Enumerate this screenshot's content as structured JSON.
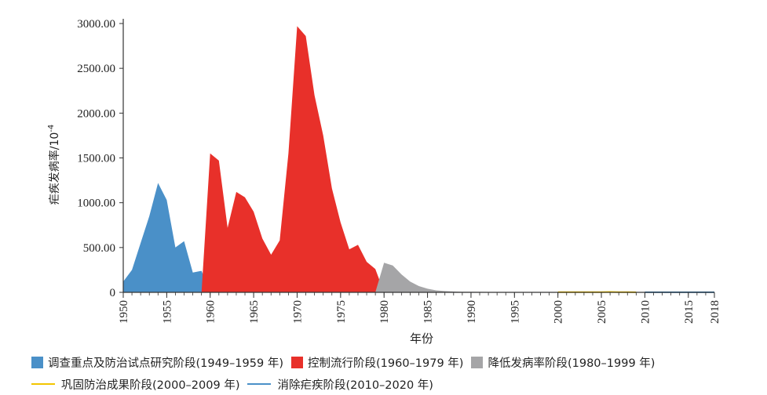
{
  "chart_data": {
    "type": "area",
    "title": "",
    "xlabel": "年份",
    "ylabel": "疟疾发病率/10",
    "ylabel_sup": "-4",
    "ylim": [
      0,
      3000
    ],
    "xlim": [
      1950,
      2018
    ],
    "y_ticks": [
      "0",
      "500.00",
      "1000.00",
      "1500.00",
      "2000.00",
      "2500.00",
      "3000.00"
    ],
    "y_tick_values": [
      0,
      500,
      1000,
      1500,
      2000,
      2500,
      3000
    ],
    "x_ticks": [
      "1950",
      "1955",
      "1960",
      "1965",
      "1970",
      "1975",
      "1980",
      "1985",
      "1990",
      "1995",
      "2000",
      "2005",
      "2010",
      "2015",
      "2018"
    ],
    "x_tick_values": [
      1950,
      1955,
      1960,
      1965,
      1970,
      1975,
      1980,
      1985,
      1990,
      1995,
      2000,
      2005,
      2010,
      2015,
      2018
    ],
    "series": [
      {
        "name": "调查重点及防治试点研究阶段(1949–1959 年)",
        "color": "#4a90c8",
        "style": "area",
        "x": [
          1950,
          1951,
          1952,
          1953,
          1954,
          1955,
          1956,
          1957,
          1958,
          1959,
          1960
        ],
        "values": [
          120,
          250,
          550,
          850,
          1220,
          1030,
          500,
          570,
          220,
          240,
          0
        ]
      },
      {
        "name": "控制流行阶段(1960–1979 年)",
        "color": "#e8302a",
        "style": "area",
        "x": [
          1959,
          1960,
          1961,
          1962,
          1963,
          1964,
          1965,
          1966,
          1967,
          1968,
          1969,
          1970,
          1971,
          1972,
          1973,
          1974,
          1975,
          1976,
          1977,
          1978,
          1979,
          1980
        ],
        "values": [
          0,
          1550,
          1470,
          720,
          1120,
          1060,
          900,
          600,
          420,
          580,
          1550,
          2970,
          2860,
          2200,
          1750,
          1160,
          780,
          480,
          530,
          340,
          260,
          0
        ]
      },
      {
        "name": "降低发病率阶段(1980–1999 年)",
        "color": "#a5a5a7",
        "style": "area",
        "x": [
          1979,
          1980,
          1981,
          1982,
          1983,
          1984,
          1985,
          1986,
          1987,
          1988,
          1989,
          1990,
          1991,
          1992,
          1993,
          1994,
          1995,
          1996,
          1997,
          1998,
          1999
        ],
        "values": [
          0,
          330,
          300,
          200,
          120,
          70,
          40,
          22,
          14,
          10,
          7,
          6,
          5,
          4,
          4,
          4,
          3,
          3,
          3,
          3,
          3
        ]
      },
      {
        "name": "巩固防治成果阶段(2000–2009 年)",
        "color": "#f2c500",
        "style": "line",
        "x": [
          2000,
          2001,
          2002,
          2003,
          2004,
          2005,
          2006,
          2007,
          2008,
          2009
        ],
        "values": [
          2,
          2,
          3,
          3,
          2,
          3,
          4,
          3,
          2,
          1
        ]
      },
      {
        "name": "消除疟疾阶段(2010–2020 年)",
        "color": "#4a90c8",
        "style": "line",
        "x": [
          2010,
          2011,
          2012,
          2013,
          2014,
          2015,
          2016,
          2017,
          2018
        ],
        "values": [
          1,
          1,
          1,
          1,
          1,
          1,
          1,
          1,
          1
        ]
      }
    ]
  }
}
